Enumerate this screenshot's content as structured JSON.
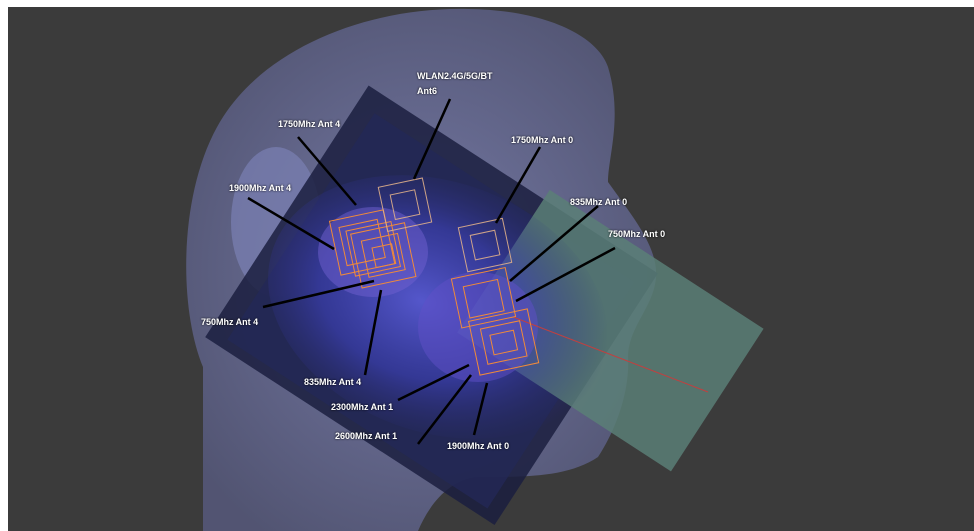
{
  "labels": {
    "wlan": "WLAN2.4G/5G/BT",
    "wlan_ant": "Ant6",
    "l1750_ant4": "1750Mhz Ant 4",
    "l1750_ant0": "1750Mhz Ant 0",
    "l1900_ant4": "1900Mhz Ant 4",
    "l835_ant0": "835Mhz Ant 0",
    "l750_ant0": "750Mhz Ant 0",
    "l750_ant4": "750Mhz Ant 4",
    "l835_ant4": "835Mhz Ant 4",
    "l2300_ant1": "2300Mhz Ant 1",
    "l2600_ant1": "2600Mhz Ant 1",
    "l1900_ant0": "1900Mhz Ant 0"
  },
  "colors": {
    "background": "#3b3b3b",
    "head": "#6a6f9c",
    "phone_body": "#1b1f3f",
    "phone_screen": "#5b7f77",
    "antenna_outline": "#f08a3a",
    "leader_line": "#000000",
    "label_text": "#ffffff"
  }
}
